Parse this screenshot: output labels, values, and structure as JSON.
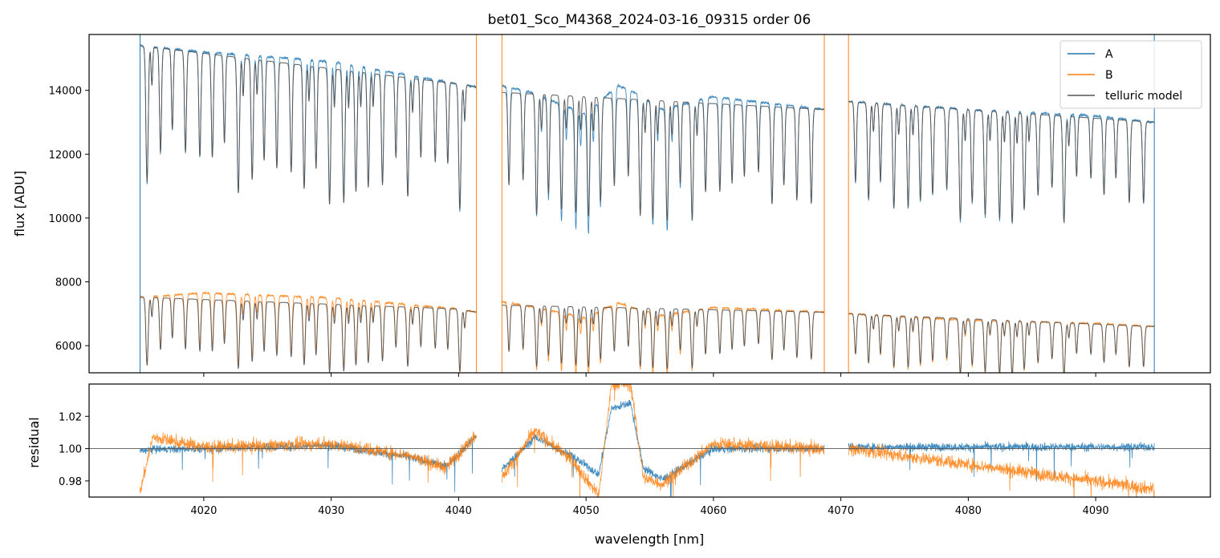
{
  "chart_data": [
    {
      "type": "line",
      "panel": "top",
      "title": "bet01_Sco_M4368_2024-03-16_09315  order 06",
      "xlabel": "",
      "ylabel": "flux [ADU]",
      "xlim": [
        4011,
        4099
      ],
      "ylim": [
        5150,
        15750
      ],
      "yticks": [
        6000,
        8000,
        10000,
        12000,
        14000
      ],
      "xticks": [
        4020,
        4030,
        4040,
        4050,
        4060,
        4070,
        4080,
        4090
      ],
      "legend": {
        "position": "top-right",
        "entries": [
          "A",
          "B",
          "telluric model"
        ]
      },
      "colors": {
        "A": "#1f77b4",
        "B": "#ff7f0e",
        "model": "#555555"
      },
      "segments": [
        [
          4015.0,
          4041.4
        ],
        [
          4043.4,
          4068.7
        ],
        [
          4070.6,
          4094.6
        ]
      ],
      "series": [
        {
          "name": "A",
          "continuum_points": {
            "x": [
              4015.0,
              4020,
              4030,
              4040,
              4041.4,
              4043.4,
              4046,
              4050,
              4052.5,
              4054,
              4056,
              4060,
              4068.7,
              4070.6,
              4080,
              4090,
              4094.6
            ],
            "y": [
              15400,
              15200,
              14900,
              14200,
              14100,
              14150,
              13900,
              13250,
              14150,
              13900,
              13400,
              13800,
              13400,
              13650,
              13400,
              13200,
              13000
            ]
          },
          "line_depth_range": [
            1800,
            4600
          ]
        },
        {
          "name": "B",
          "continuum_points": {
            "x": [
              4015.0,
              4020,
              4030,
              4040,
              4041.4,
              4043.4,
              4046,
              4050,
              4052.5,
              4054,
              4056,
              4060,
              4068.7,
              4070.6,
              4080,
              4090,
              4094.6
            ],
            "y": [
              7520,
              7650,
              7500,
              7150,
              7050,
              7380,
              7200,
              6880,
              7350,
              7150,
              6950,
              7200,
              7050,
              7000,
              6800,
              6700,
              6600
            ]
          },
          "line_depth_range": [
            900,
            2300
          ]
        },
        {
          "name": "telluric model"
        }
      ]
    },
    {
      "type": "line",
      "panel": "bottom",
      "title": "",
      "xlabel": "wavelength [nm]",
      "ylabel": "residual",
      "xlim": [
        4011,
        4099
      ],
      "ylim": [
        0.97,
        1.04
      ],
      "yticks": [
        0.98,
        1.0,
        1.02
      ],
      "yticklabels": [
        "0.98",
        "1.00",
        "1.02"
      ],
      "xticks": [
        4020,
        4030,
        4040,
        4050,
        4060,
        4070,
        4080,
        4090
      ],
      "reference_line": 1.0,
      "series": [
        {
          "name": "A",
          "baseline_points": {
            "x": [
              4015.0,
              4016,
              4020,
              4030,
              4036,
              4039,
              4041.4,
              4043.4,
              4046,
              4049,
              4051,
              4052,
              4053.5,
              4054.5,
              4056,
              4060,
              4068.7,
              4070.6,
              4094.6
            ],
            "y": [
              0.9985,
              0.9995,
              1.0,
              1.002,
              0.995,
              0.989,
              1.008,
              0.987,
              1.007,
              0.995,
              0.984,
              1.025,
              1.028,
              0.988,
              0.981,
              1.0,
              1.0,
              1.001,
              1.001
            ]
          },
          "noise": 0.0025
        },
        {
          "name": "B",
          "baseline_points": {
            "x": [
              4015.0,
              4016,
              4020,
              4030,
              4036,
              4039,
              4041.4,
              4043.4,
              4046,
              4049,
              4051,
              4052,
              4053.5,
              4054.5,
              4056,
              4060,
              4068.7,
              4070.6,
              4094.6
            ],
            "y": [
              0.973,
              1.007,
              1.001,
              1.003,
              0.996,
              0.988,
              1.009,
              0.982,
              1.011,
              0.992,
              0.971,
              1.04,
              1.04,
              0.982,
              0.978,
              1.003,
              1.0,
              1.0,
              0.975
            ]
          },
          "noise": 0.004
        }
      ]
    }
  ]
}
